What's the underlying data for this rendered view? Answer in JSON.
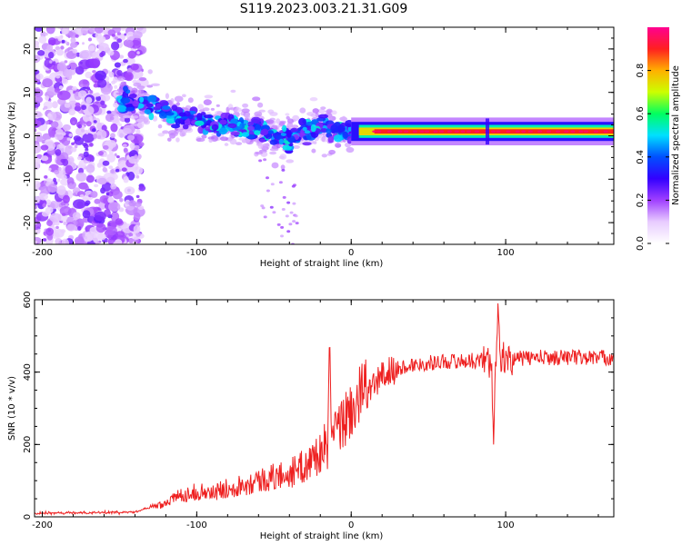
{
  "title": "S119.2023.003.21.31.G09",
  "chart_data": [
    {
      "type": "heatmap",
      "xlabel": "Height of straight line (km)",
      "ylabel": "Frequency (Hz)",
      "xlim": [
        -205,
        170
      ],
      "ylim": [
        -25,
        25
      ],
      "xticks": [
        -200,
        -100,
        0,
        100
      ],
      "yticks": [
        -20,
        -10,
        0,
        10,
        20
      ],
      "colorbar": {
        "label": "Normalized spectral amplitude",
        "range": [
          0,
          1
        ],
        "ticks": [
          0.0,
          0.2,
          0.4,
          0.6,
          0.8
        ],
        "tick_labels": [
          "0.0",
          "0.2",
          "0.4",
          "0.6",
          "0.8"
        ],
        "colormap": [
          "#ffffff",
          "#e8ccff",
          "#a040ff",
          "#3300ff",
          "#0050ff",
          "#00e0ff",
          "#00ff60",
          "#ccff00",
          "#ffb000",
          "#ff2020",
          "#ff0090"
        ]
      },
      "features": {
        "noise_region_x": [
          -205,
          -140
        ],
        "descending_track": [
          [
            -150,
            8
          ],
          [
            -130,
            7
          ],
          [
            -110,
            4
          ],
          [
            -90,
            3
          ],
          [
            -70,
            2
          ],
          [
            -50,
            0
          ],
          [
            -40,
            -1
          ],
          [
            -30,
            1
          ],
          [
            -20,
            2
          ],
          [
            -10,
            1
          ],
          [
            0,
            1
          ]
        ],
        "flat_track_freq": 1
      }
    },
    {
      "type": "line",
      "xlabel": "Height of straight line (km)",
      "ylabel": "SNR (10 * v/v)",
      "xlim": [
        -205,
        170
      ],
      "ylim": [
        0,
        600
      ],
      "xticks": [
        -200,
        -100,
        0,
        100
      ],
      "yticks": [
        0,
        200,
        400,
        600
      ],
      "series": [
        {
          "color": "#ee2020",
          "x": [
            -205,
            -190,
            -170,
            -150,
            -140,
            -130,
            -120,
            -110,
            -100,
            -90,
            -80,
            -70,
            -60,
            -50,
            -40,
            -30,
            -25,
            -20,
            -15,
            -10,
            -5,
            0,
            10,
            20,
            30,
            40,
            50,
            60,
            70,
            80,
            90,
            93,
            95,
            100,
            110,
            120,
            130,
            140,
            150,
            160,
            170
          ],
          "y": [
            10,
            10,
            12,
            12,
            15,
            25,
            40,
            60,
            70,
            65,
            80,
            90,
            100,
            110,
            120,
            140,
            160,
            180,
            200,
            230,
            260,
            300,
            340,
            390,
            410,
            420,
            425,
            430,
            430,
            432,
            435,
            420,
            430,
            435,
            438,
            440,
            440,
            442,
            440,
            440,
            440
          ]
        }
      ],
      "spikes": [
        {
          "x": -14,
          "y": 520
        },
        {
          "x": 92,
          "y": 190
        },
        {
          "x": 95,
          "y": 600
        }
      ]
    }
  ]
}
